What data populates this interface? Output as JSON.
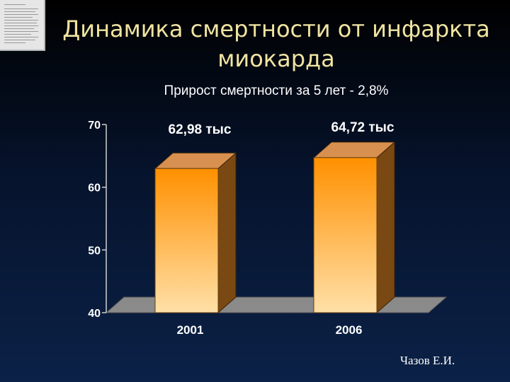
{
  "slide": {
    "title_line1": "Динамика смертности от инфаркта",
    "title_line2": "миокарда",
    "subtitle": "Прирост смертности за 5 лет  - 2,8%",
    "author": "Чазов Е.И."
  },
  "chart_data": {
    "type": "bar",
    "title": "",
    "xlabel": "",
    "ylabel": "",
    "categories": [
      "2001",
      "2006"
    ],
    "series": [
      {
        "values": [
          62.98,
          64.72
        ]
      }
    ],
    "data_labels": [
      "62,98 тыс",
      "64,72 тыс"
    ],
    "ylim": [
      40,
      70
    ],
    "yticks": [
      40,
      50,
      60,
      70
    ],
    "grid": false,
    "legend": "none",
    "style": "3d-column",
    "colors": {
      "bar_top": "#ff9000",
      "bar_bottom": "#ffe0a8",
      "bar_side": "#7a4812",
      "bar_cap": "#d89050",
      "floor": "#8a8a8a"
    }
  }
}
